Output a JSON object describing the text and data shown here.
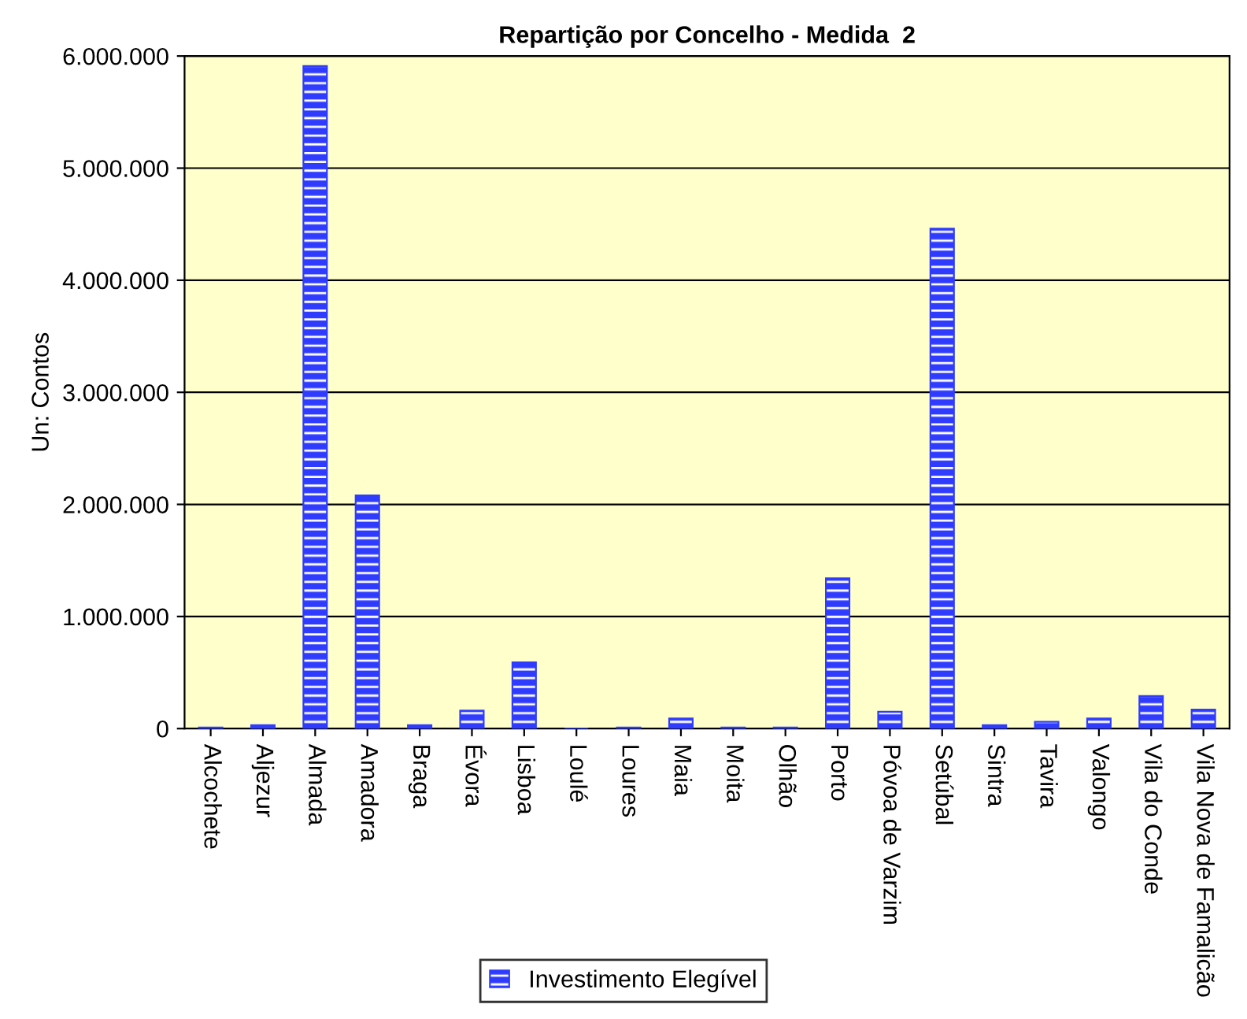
{
  "chart_data": {
    "type": "bar",
    "title": "Repartição por Concelho - Medida  2",
    "ylabel": "Un: Contos",
    "categories": [
      "Alcochete",
      "Aljezur",
      "Almada",
      "Amadora",
      "Braga",
      "Évora",
      "Lisboa",
      "Loulé",
      "Loures",
      "Maia",
      "Moita",
      "Olhão",
      "Porto",
      "Póvoa de Varzim",
      "Setúbal",
      "Sintra",
      "Tavira",
      "Valongo",
      "Vila do Conde",
      "Vila Nova de Famalicão"
    ],
    "series": [
      {
        "name": "Investimento Elegível",
        "color": "#2f3cff",
        "values": [
          10000,
          30000,
          5910000,
          2080000,
          30000,
          160000,
          590000,
          0,
          10000,
          90000,
          10000,
          10000,
          1340000,
          150000,
          4460000,
          30000,
          60000,
          90000,
          290000,
          170000
        ]
      }
    ],
    "ylim": [
      0,
      6000000
    ],
    "yticks": [
      {
        "value": 0,
        "label": "0"
      },
      {
        "value": 1000000,
        "label": "1.000.000"
      },
      {
        "value": 2000000,
        "label": "2.000.000"
      },
      {
        "value": 3000000,
        "label": "3.000.000"
      },
      {
        "value": 4000000,
        "label": "4.000.000"
      },
      {
        "value": 5000000,
        "label": "5.000.000"
      },
      {
        "value": 6000000,
        "label": "6.000.000"
      }
    ],
    "grid": "y",
    "legend": "bottom"
  }
}
